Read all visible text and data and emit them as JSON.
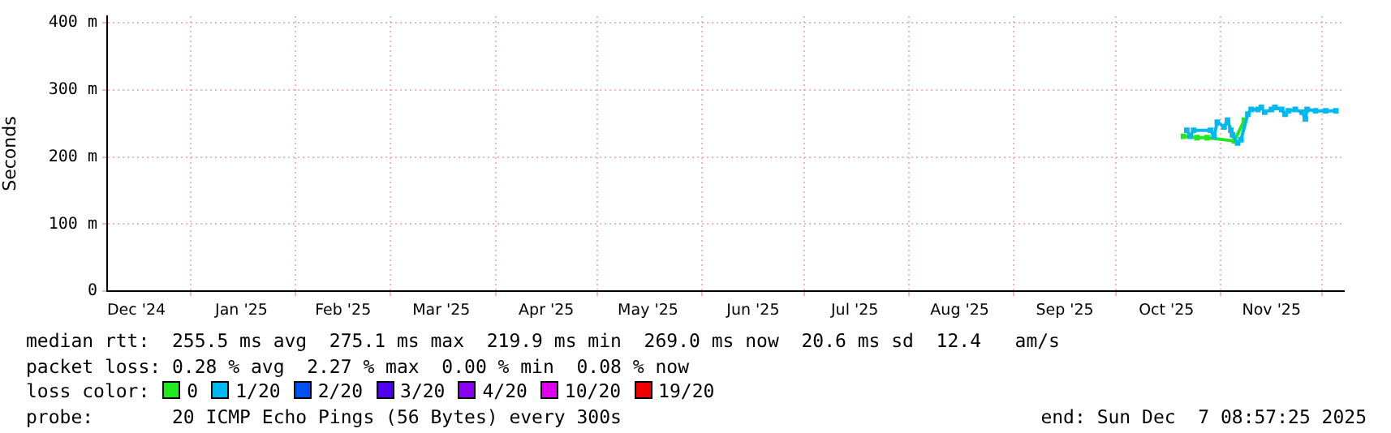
{
  "chart_data": {
    "type": "line",
    "ylabel": "Seconds",
    "legend_title": "loss color:",
    "legend": "bottom",
    "marker": "square",
    "grid": true,
    "x": [
      "2025-10-21",
      "2025-10-22",
      "2025-10-23",
      "2025-10-24",
      "2025-10-25",
      "2025-10-28",
      "2025-10-29",
      "2025-10-30",
      "2025-10-31",
      "2025-11-02",
      "2025-11-03",
      "2025-11-04",
      "2025-11-04T12:00",
      "2025-11-05",
      "2025-11-06",
      "2025-11-07",
      "2025-11-08",
      "2025-11-09",
      "2025-11-10",
      "2025-11-12",
      "2025-11-13",
      "2025-11-14",
      "2025-11-16",
      "2025-11-17",
      "2025-11-19",
      "2025-11-20",
      "2025-11-21",
      "2025-11-23",
      "2025-11-25",
      "2025-11-26",
      "2025-11-26T12:00",
      "2025-11-29",
      "2025-12-02",
      "2025-12-05"
    ],
    "series": [
      {
        "name": "0",
        "color": "#22e822",
        "values": [
          231,
          null,
          null,
          null,
          229,
          229,
          null,
          null,
          null,
          null,
          null,
          null,
          null,
          224,
          null,
          null,
          255,
          null,
          null,
          null,
          null,
          null,
          null,
          null,
          null,
          null,
          null,
          null,
          null,
          null,
          null,
          null,
          null,
          null
        ]
      },
      {
        "name": "1/20",
        "color": "#00b8f0",
        "values": [
          null,
          240,
          231,
          240,
          null,
          null,
          240,
          231,
          252,
          245,
          255,
          240,
          233,
          null,
          221,
          226,
          null,
          264,
          271,
          271,
          274,
          267,
          271,
          274,
          271,
          264,
          269,
          271,
          267,
          257,
          271,
          269,
          269,
          269
        ]
      },
      {
        "name": "2/20",
        "color": "#0050f0",
        "values": [
          null,
          null,
          null,
          null,
          null,
          null,
          null,
          null,
          null,
          null,
          null,
          null,
          null,
          null,
          null,
          null,
          null,
          null,
          null,
          null,
          null,
          null,
          null,
          null,
          null,
          null,
          null,
          null,
          null,
          null,
          null,
          null,
          null,
          null
        ]
      },
      {
        "name": "3/20",
        "color": "#5000f0",
        "values": [
          null,
          null,
          null,
          null,
          null,
          null,
          null,
          null,
          null,
          null,
          null,
          null,
          null,
          null,
          null,
          null,
          null,
          null,
          null,
          null,
          null,
          null,
          null,
          null,
          null,
          null,
          null,
          null,
          null,
          null,
          null,
          null,
          null,
          null
        ]
      },
      {
        "name": "4/20",
        "color": "#8800f0",
        "values": [
          null,
          null,
          null,
          null,
          null,
          null,
          null,
          null,
          null,
          null,
          null,
          null,
          null,
          null,
          null,
          null,
          null,
          null,
          null,
          null,
          null,
          null,
          null,
          null,
          null,
          null,
          null,
          null,
          null,
          null,
          null,
          null,
          null,
          null
        ]
      },
      {
        "name": "10/20",
        "color": "#e000f0",
        "values": [
          null,
          null,
          null,
          null,
          null,
          null,
          null,
          null,
          null,
          null,
          null,
          null,
          null,
          null,
          null,
          null,
          null,
          null,
          null,
          null,
          null,
          null,
          null,
          null,
          null,
          null,
          null,
          null,
          null,
          null,
          null,
          null,
          null,
          null
        ]
      },
      {
        "name": "19/20",
        "color": "#f00000",
        "values": [
          null,
          null,
          null,
          null,
          null,
          null,
          null,
          null,
          null,
          null,
          null,
          null,
          null,
          null,
          null,
          null,
          null,
          null,
          null,
          null,
          null,
          null,
          null,
          null,
          null,
          null,
          null,
          null,
          null,
          null,
          null,
          null,
          null,
          null
        ]
      }
    ],
    "xlim": [
      "2024-12-07T08:57",
      "2025-12-07T08:57"
    ],
    "xticks": [
      {
        "value": "2024-12-16",
        "label": "Dec '24"
      },
      {
        "value": "2025-01-01",
        "label": null
      },
      {
        "value": "2025-01-16",
        "label": "Jan '25"
      },
      {
        "value": "2025-02-01",
        "label": null
      },
      {
        "value": "2025-02-15",
        "label": "Feb '25"
      },
      {
        "value": "2025-03-01",
        "label": null
      },
      {
        "value": "2025-03-16",
        "label": "Mar '25"
      },
      {
        "value": "2025-04-01",
        "label": null
      },
      {
        "value": "2025-04-16",
        "label": "Apr '25"
      },
      {
        "value": "2025-05-01",
        "label": null
      },
      {
        "value": "2025-05-16",
        "label": "May '25"
      },
      {
        "value": "2025-06-01",
        "label": null
      },
      {
        "value": "2025-06-16",
        "label": "Jun '25"
      },
      {
        "value": "2025-07-01",
        "label": null
      },
      {
        "value": "2025-07-16",
        "label": "Jul '25"
      },
      {
        "value": "2025-08-01",
        "label": null
      },
      {
        "value": "2025-08-16",
        "label": "Aug '25"
      },
      {
        "value": "2025-09-01",
        "label": null
      },
      {
        "value": "2025-09-16",
        "label": "Sep '25"
      },
      {
        "value": "2025-10-01",
        "label": null
      },
      {
        "value": "2025-10-16",
        "label": "Oct '25"
      },
      {
        "value": "2025-11-01",
        "label": null
      },
      {
        "value": "2025-11-16",
        "label": "Nov '25"
      },
      {
        "value": "2025-12-01",
        "label": null
      }
    ],
    "ylim": [
      0,
      410
    ],
    "yticks": [
      0,
      {
        "value": 100,
        "label": "100 m"
      },
      {
        "value": 200,
        "label": "200 m"
      },
      {
        "value": 300,
        "label": "300 m"
      },
      {
        "value": 400,
        "label": "400 m"
      }
    ],
    "annotations": [
      "median rtt:  255.5 ms avg  275.1 ms max  219.9 ms min  269.0 ms now  20.6 ms sd  12.4   am/s",
      "packet loss: 0.28 % avg  2.27 % max  0.00 % min  0.08 % now",
      "probe:       20 ICMP Echo Pings (56 Bytes) every 300s",
      "end: Sun Dec  7 08:57:25 2025"
    ]
  }
}
